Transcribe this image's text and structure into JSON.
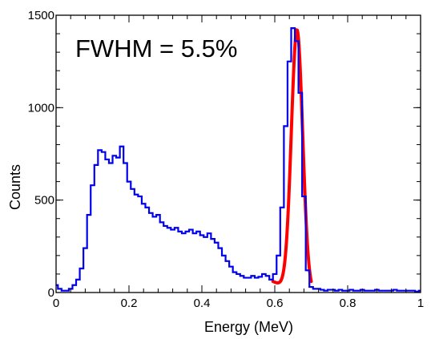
{
  "chart_data": {
    "type": "line",
    "title": "",
    "xlabel": "Energy (MeV)",
    "ylabel": "Counts",
    "xlim": [
      0,
      1
    ],
    "ylim": [
      0,
      1500
    ],
    "x_ticks": [
      0,
      0.2,
      0.4,
      0.6,
      0.8,
      1
    ],
    "x_tick_labels": [
      "0",
      "0.2",
      "0.4",
      "0.6",
      "0.8",
      "1"
    ],
    "y_ticks": [
      0,
      500,
      1000,
      1500
    ],
    "y_tick_labels": [
      "0",
      "500",
      "1000",
      "1500"
    ],
    "grid": false,
    "annotation": "FWHM = 5.5%",
    "colors": {
      "histogram": "#0000ee",
      "fit": "#ff0000"
    },
    "series": [
      {
        "style": "step",
        "x": [
          0,
          0.01,
          0.02,
          0.03,
          0.04,
          0.05,
          0.06,
          0.07,
          0.08,
          0.09,
          0.1,
          0.11,
          0.12,
          0.13,
          0.14,
          0.15,
          0.16,
          0.17,
          0.18,
          0.19,
          0.2,
          0.21,
          0.22,
          0.23,
          0.24,
          0.25,
          0.26,
          0.27,
          0.28,
          0.29,
          0.3,
          0.31,
          0.32,
          0.33,
          0.34,
          0.35,
          0.36,
          0.37,
          0.38,
          0.39,
          0.4,
          0.41,
          0.42,
          0.43,
          0.44,
          0.45,
          0.46,
          0.47,
          0.48,
          0.49,
          0.5,
          0.51,
          0.52,
          0.53,
          0.54,
          0.55,
          0.56,
          0.57,
          0.58,
          0.59,
          0.6,
          0.61,
          0.62,
          0.63,
          0.64,
          0.65,
          0.66,
          0.67,
          0.68,
          0.69,
          0.7,
          0.71,
          0.72,
          0.73,
          0.74,
          0.75,
          0.76,
          0.77,
          0.78,
          0.79,
          0.8,
          0.81,
          0.82,
          0.83,
          0.84,
          0.85,
          0.86,
          0.87,
          0.88,
          0.89,
          0.9,
          0.91,
          0.92,
          0.93,
          0.94,
          0.95,
          0.96,
          0.97,
          0.98,
          0.99,
          1.0
        ],
        "y": [
          40,
          20,
          10,
          10,
          20,
          40,
          70,
          130,
          240,
          420,
          580,
          690,
          770,
          760,
          720,
          700,
          740,
          730,
          790,
          700,
          600,
          560,
          530,
          520,
          480,
          460,
          430,
          410,
          420,
          380,
          360,
          350,
          340,
          350,
          330,
          320,
          330,
          340,
          320,
          330,
          310,
          300,
          320,
          290,
          270,
          240,
          200,
          170,
          140,
          110,
          100,
          90,
          80,
          80,
          90,
          80,
          85,
          100,
          90,
          70,
          100,
          200,
          460,
          900,
          1250,
          1430,
          1360,
          1080,
          520,
          120,
          30,
          20,
          20,
          15,
          10,
          15,
          15,
          10,
          15,
          10,
          10,
          15,
          10,
          10,
          15,
          10,
          10,
          10,
          15,
          10,
          10,
          10,
          10,
          15,
          10,
          10,
          10,
          10,
          10,
          5,
          10
        ]
      },
      {
        "style": "fit",
        "model": "gaussian",
        "x_range": [
          0.595,
          0.7
        ],
        "amplitude": 1420,
        "mean": 0.661,
        "sigma": 0.0155,
        "baseline": 60
      }
    ]
  }
}
